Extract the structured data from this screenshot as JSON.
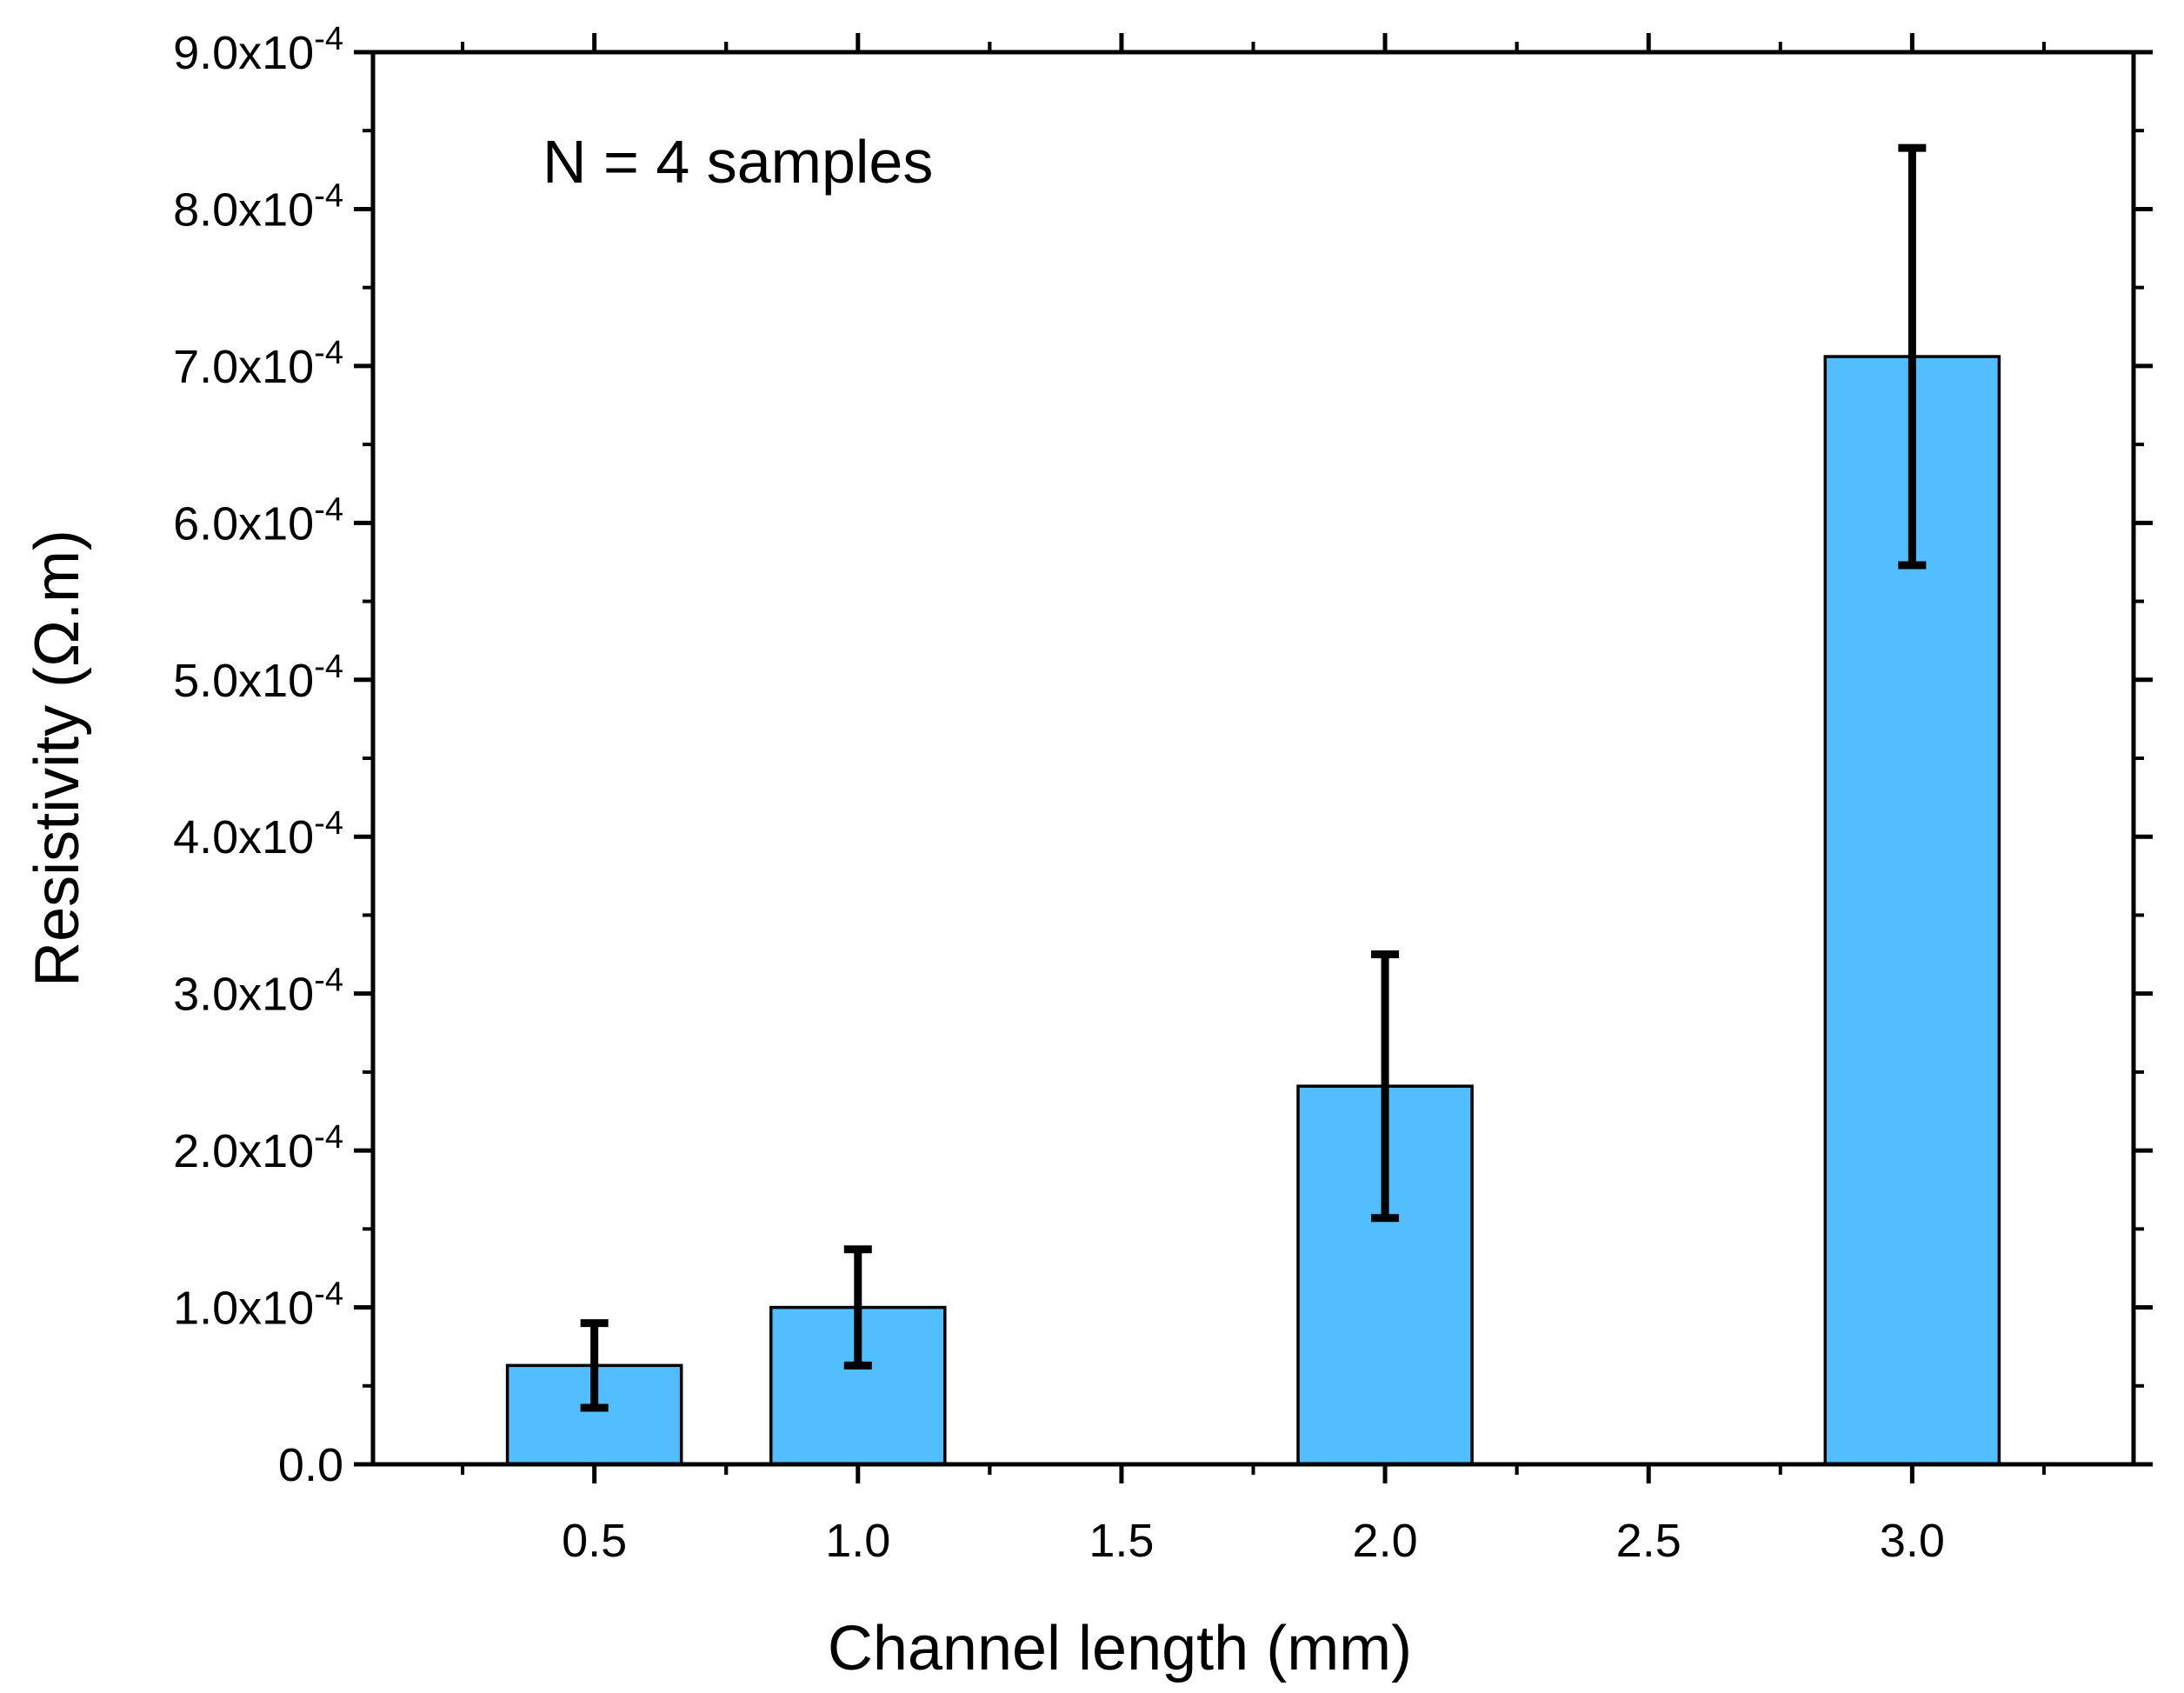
{
  "chart_data": {
    "type": "bar",
    "title": "",
    "annotation": "N = 4 samples",
    "xlabel": "Channel length (mm)",
    "ylabel": "Resistivity (Ω.m)",
    "x": [
      0.5,
      1.0,
      2.0,
      3.0
    ],
    "values": [
      6.3e-05,
      0.0001,
      0.000241,
      0.000706
    ],
    "errors": [
      2.7e-05,
      3.7e-05,
      8.4e-05,
      0.000133
    ],
    "bar_width": 0.33,
    "xlim": [
      0.08,
      3.42
    ],
    "ylim": [
      0,
      0.0009
    ],
    "x_ticks": [
      0.5,
      1.0,
      1.5,
      2.0,
      2.5,
      3.0
    ],
    "x_tick_labels": [
      "0.5",
      "1.0",
      "1.5",
      "2.0",
      "2.5",
      "3.0"
    ],
    "y_ticks": [
      0,
      0.0001,
      0.0002,
      0.0003,
      0.0004,
      0.0005,
      0.0006,
      0.0007,
      0.0008,
      0.0009
    ],
    "y_tick_labels": [
      {
        "mantissa": "0.0",
        "exponent": ""
      },
      {
        "mantissa": "1.0x10",
        "exponent": "-4"
      },
      {
        "mantissa": "2.0x10",
        "exponent": "-4"
      },
      {
        "mantissa": "3.0x10",
        "exponent": "-4"
      },
      {
        "mantissa": "4.0x10",
        "exponent": "-4"
      },
      {
        "mantissa": "5.0x10",
        "exponent": "-4"
      },
      {
        "mantissa": "6.0x10",
        "exponent": "-4"
      },
      {
        "mantissa": "7.0x10",
        "exponent": "-4"
      },
      {
        "mantissa": "8.0x10",
        "exponent": "-4"
      },
      {
        "mantissa": "9.0x10",
        "exponent": "-4"
      }
    ],
    "grid": false,
    "bar_color": "#52bdff",
    "bar_edge_color": "#000000",
    "error_color": "#000000"
  }
}
